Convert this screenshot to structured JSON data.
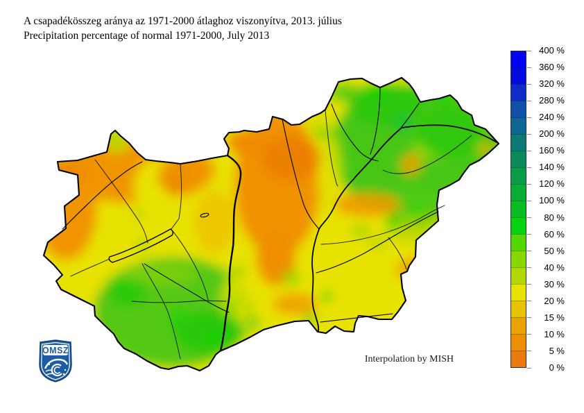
{
  "title": {
    "line1_hu": "A csapadékösszeg aránya az 1971-2000 átlaghoz viszonyítva, 2013. július",
    "line2_en": "Precipitation percentage of normal 1971-2000, July 2013"
  },
  "map": {
    "region": "Hungary",
    "attribution": "Interpolation by MISH",
    "logo": {
      "text": "OMSZ",
      "color": "#1c5ca6"
    },
    "palette": {
      "base_yellow": "#e8e200",
      "orange": "#f09400",
      "deep_orange": "#ec8000",
      "green": "#46c614",
      "bright_green": "#10d400",
      "yellow_green": "#b2d800",
      "border_black": "#000000"
    }
  },
  "legend": {
    "unit": "%",
    "tick_labels": [
      "400 %",
      "360 %",
      "320 %",
      "280 %",
      "240 %",
      "200 %",
      "160 %",
      "140 %",
      "120 %",
      "100 %",
      "80 %",
      "60 %",
      "50 %",
      "40 %",
      "30 %",
      "20 %",
      "15 %",
      "10 %",
      "5 %",
      "0 %"
    ],
    "segment_colors_top_to_bottom": [
      "#0202f2",
      "#020ae0",
      "#0e2cc8",
      "#1150aa",
      "#0e6692",
      "#0c7a74",
      "#0b8a5c",
      "#0a9a48",
      "#09ac34",
      "#08bc24",
      "#06d410",
      "#52d800",
      "#86d800",
      "#b2d802",
      "#e6e400",
      "#e6c402",
      "#eaa402",
      "#ec9002",
      "#e87a10"
    ]
  }
}
